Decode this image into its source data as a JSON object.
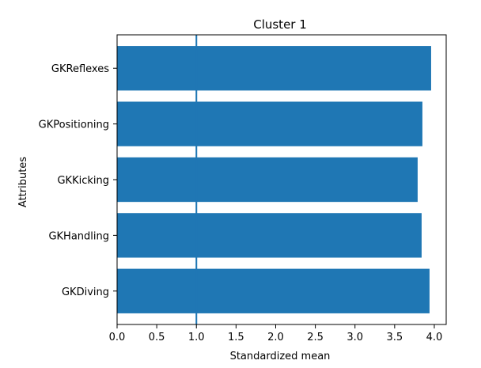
{
  "chart_data": {
    "type": "bar",
    "orientation": "horizontal",
    "title": "Cluster 1",
    "xlabel": "Standardized mean",
    "ylabel": "Attributes",
    "categories": [
      "GKDiving",
      "GKHandling",
      "GKKicking",
      "GKPositioning",
      "GKReflexes"
    ],
    "values": [
      3.94,
      3.84,
      3.79,
      3.85,
      3.96
    ],
    "xlim": [
      0.0,
      4.15
    ],
    "xticks": [
      "0.0",
      "0.5",
      "1.0",
      "1.5",
      "2.0",
      "2.5",
      "3.0",
      "3.5",
      "4.0"
    ],
    "reference_line": 1.0,
    "bar_color": "#1f77b4",
    "line_color": "#1f77b4",
    "grid": false
  }
}
